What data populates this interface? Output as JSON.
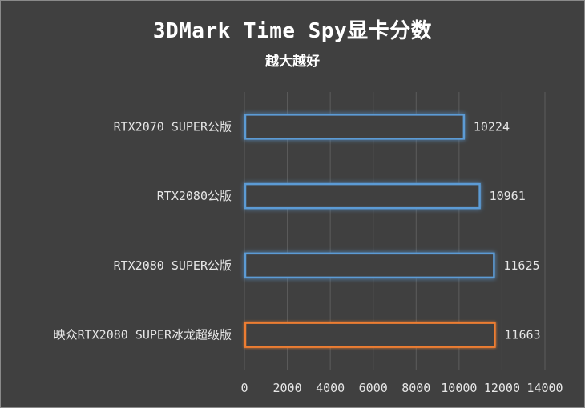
{
  "chart_data": {
    "type": "bar",
    "orientation": "horizontal",
    "title": "3DMark Time Spy显卡分数",
    "subtitle": "越大越好",
    "categories": [
      "RTX2070 SUPER公版",
      "RTX2080公版",
      "RTX2080 SUPER公版",
      "映众RTX2080 SUPER冰龙超级版"
    ],
    "values": [
      10224,
      10961,
      11625,
      11663
    ],
    "bar_colors": [
      "#5b9bd5",
      "#5b9bd5",
      "#5b9bd5",
      "#ed7d31"
    ],
    "xlim": [
      0,
      14000
    ],
    "xticks": [
      0,
      2000,
      4000,
      6000,
      8000,
      10000,
      12000,
      14000
    ],
    "grid": true,
    "legend": "none",
    "xlabel": "",
    "ylabel": ""
  }
}
